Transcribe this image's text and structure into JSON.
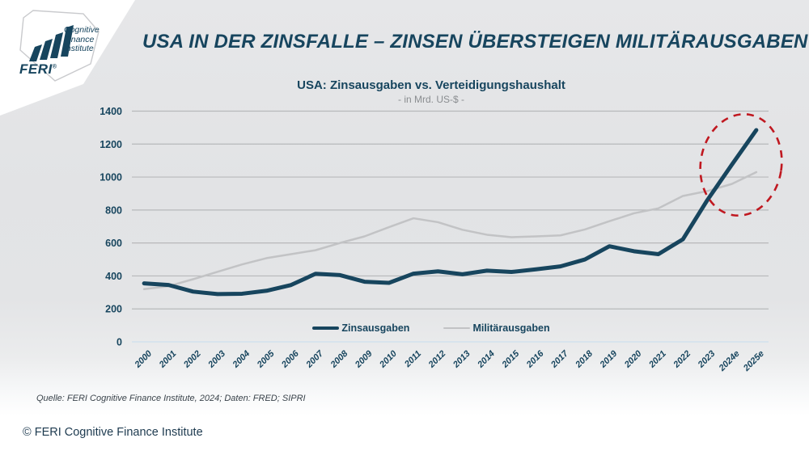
{
  "header": {
    "title": "USA IN DER ZINSFALLE – ZINSEN ÜBERSTEIGEN MILITÄRAUSGABEN",
    "logo": {
      "brand": "FERI",
      "registered": "®",
      "tagline_line1": "Cognitive",
      "tagline_line2": "Finance",
      "tagline_line3": "Institute"
    }
  },
  "chart": {
    "title": "USA: Zinsausgaben vs. Verteidigungshaushalt",
    "subtitle": "- in Mrd. US-$ -"
  },
  "chart_data": {
    "type": "line",
    "title": "USA: Zinsausgaben vs. Verteidigungshaushalt",
    "subtitle": "- in Mrd. US-$ -",
    "xlabel": "",
    "ylabel": "in Mrd. US-$",
    "ylim": [
      0,
      1400
    ],
    "ytick_step": 200,
    "grid": true,
    "legend_position": "bottom-center-inside",
    "categories": [
      "2000",
      "2001",
      "2002",
      "2003",
      "2004",
      "2005",
      "2006",
      "2007",
      "2008",
      "2009",
      "2010",
      "2011",
      "2012",
      "2013",
      "2014",
      "2015",
      "2016",
      "2017",
      "2018",
      "2019",
      "2020",
      "2021",
      "2022",
      "2023",
      "2024e",
      "2025e"
    ],
    "series": [
      {
        "name": "Zinsausgaben",
        "color": "#17455e",
        "width": 5,
        "values": [
          355,
          345,
          305,
          290,
          292,
          310,
          345,
          413,
          405,
          365,
          358,
          414,
          428,
          410,
          432,
          424,
          440,
          458,
          500,
          580,
          550,
          532,
          622,
          860,
          1075,
          1285
        ]
      },
      {
        "name": "Militärausgaben",
        "color": "#c2c3c5",
        "width": 2.5,
        "values": [
          320,
          338,
          380,
          425,
          470,
          508,
          532,
          556,
          600,
          640,
          696,
          750,
          726,
          680,
          650,
          635,
          640,
          646,
          682,
          732,
          780,
          810,
          885,
          915,
          958,
          1030
        ]
      }
    ],
    "annotation": {
      "shape": "dashed-ellipse",
      "color": "#c01820",
      "around": "2023–2025e, Zinsen übersteigen Militärausgaben"
    }
  },
  "source": "Quelle: FERI Cognitive Finance Institute, 2024; Daten: FRED; SIPRI",
  "footer": "© FERI Cognitive Finance Institute",
  "colors": {
    "navy": "#17455e",
    "grid": "#b7b8ba",
    "baseline": "#cfe0ee",
    "card_gray": "#e2e3e5",
    "badge_border": "#c9cacd",
    "red": "#c01820"
  }
}
